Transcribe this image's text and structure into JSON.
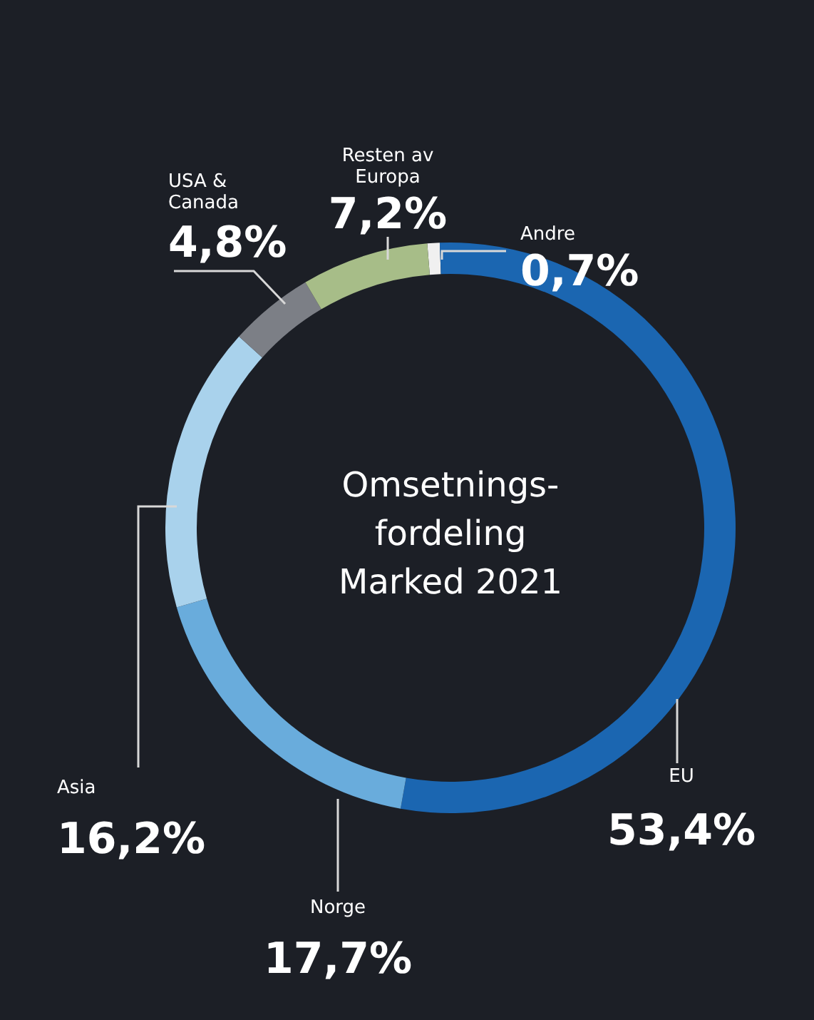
{
  "chart_data": {
    "type": "donut",
    "title": "Omsetnings-\nfordeling\nMarked 2021",
    "categories": [
      "Andre",
      "EU",
      "Norge",
      "Asia",
      "USA & Canada",
      "Resten av Europa"
    ],
    "values": [
      0.7,
      53.4,
      17.7,
      16.2,
      4.8,
      7.2
    ],
    "colors": [
      "#f0f0f0",
      "#1b66b1",
      "#69acdc",
      "#a9d2ec",
      "#7c7f86",
      "#a7bd88"
    ],
    "value_labels": [
      "0,7%",
      "53,4%",
      "17,7%",
      "16,2%",
      "4,8%",
      "7,2%"
    ],
    "legend": false
  }
}
